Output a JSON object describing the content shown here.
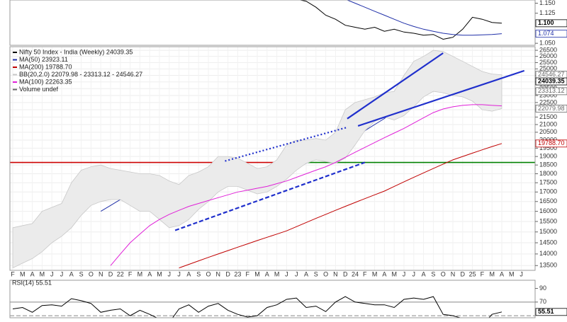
{
  "chart_data": [
    {
      "type": "line",
      "ylim": [
        1.045,
        1.158
      ],
      "yticks": [
        {
          "value": 1.05,
          "label": "1.050"
        },
        {
          "value": 1.125,
          "label": "1.125"
        },
        {
          "value": 1.15,
          "label": "1.150"
        }
      ],
      "series": [
        {
          "color": "#000000",
          "values": [
            null,
            null,
            null,
            null,
            null,
            null,
            null,
            null,
            null,
            null,
            null,
            null,
            null,
            null,
            null,
            null,
            null,
            null,
            null,
            null,
            null,
            null,
            null,
            null,
            null,
            null,
            null,
            null,
            1.165,
            1.16,
            1.155,
            1.14,
            1.12,
            1.11,
            1.095,
            1.09,
            1.085,
            1.09,
            1.08,
            1.085,
            1.078,
            1.075,
            1.07,
            1.072,
            1.06,
            1.065,
            1.085,
            1.115,
            1.11,
            1.102,
            1.1,
            null,
            null
          ]
        },
        {
          "color": "#1f2fa8",
          "values": [
            null,
            null,
            null,
            null,
            null,
            null,
            null,
            null,
            null,
            null,
            null,
            null,
            null,
            null,
            null,
            null,
            null,
            null,
            null,
            null,
            null,
            null,
            null,
            null,
            null,
            null,
            null,
            null,
            null,
            null,
            null,
            null,
            null,
            null,
            1.16,
            1.15,
            1.14,
            1.13,
            1.12,
            1.11,
            1.1,
            1.092,
            1.085,
            1.08,
            1.075,
            1.072,
            1.07,
            1.07,
            1.071,
            1.072,
            1.074,
            null,
            null
          ]
        }
      ],
      "tags": [
        {
          "value": 1.1,
          "label": "1.100",
          "color": "#000000"
        },
        {
          "value": 1.074,
          "color": "#1f2fa8"
        }
      ]
    },
    {
      "type": "line",
      "log_scale": true,
      "ylim": [
        13300,
        26800
      ],
      "categories": [
        "F",
        "M",
        "A",
        "M",
        "J",
        "J",
        "A",
        "S",
        "O",
        "N",
        "D",
        "22",
        "F",
        "M",
        "A",
        "M",
        "J",
        "J",
        "A",
        "S",
        "O",
        "N",
        "D",
        "23",
        "F",
        "M",
        "A",
        "M",
        "J",
        "J",
        "A",
        "S",
        "O",
        "N",
        "D",
        "24",
        "F",
        "M",
        "A",
        "M",
        "J",
        "J",
        "A",
        "S",
        "O",
        "N",
        "D",
        "25",
        "F",
        "M",
        "A",
        "M",
        "J"
      ],
      "yticks": [
        13500,
        14000,
        14500,
        15000,
        15500,
        16000,
        16500,
        17000,
        17500,
        18000,
        18500,
        19000,
        19500,
        20000,
        20500,
        21000,
        21500,
        22000,
        22500,
        23000,
        23500,
        24000,
        24500,
        25000,
        25500,
        26000,
        26500
      ],
      "series": [
        {
          "name": "Nifty 50 Index - India (Weekly) 24039.35",
          "color": "#000000",
          "values": [
            14500,
            14700,
            14600,
            15500,
            15700,
            15800,
            17100,
            17600,
            17700,
            17000,
            17300,
            17300,
            16800,
            17400,
            17100,
            16500,
            15700,
            17100,
            17700,
            17000,
            18000,
            18700,
            18100,
            17600,
            17300,
            17300,
            18000,
            18500,
            19200,
            19700,
            19300,
            19600,
            19100,
            20100,
            21700,
            21700,
            22000,
            22300,
            22600,
            22500,
            24000,
            24900,
            25200,
            25800,
            24200,
            24100,
            23600,
            23500,
            22100,
            23500,
            24039.35,
            null,
            null
          ]
        },
        {
          "name": "MA(50) 23923.11",
          "color": "#1f2fa8",
          "values": [
            null,
            null,
            null,
            null,
            null,
            null,
            null,
            null,
            null,
            16000,
            16300,
            16600,
            16800,
            17000,
            17050,
            17000,
            16900,
            16900,
            16950,
            17000,
            17100,
            17250,
            17350,
            17400,
            17450,
            17500,
            17600,
            17750,
            18000,
            18300,
            18600,
            18850,
            19100,
            19400,
            19800,
            20200,
            20600,
            21000,
            21400,
            21900,
            22400,
            22900,
            23300,
            23700,
            23900,
            24000,
            24050,
            24050,
            24000,
            23950,
            23923.11,
            null,
            null
          ]
        },
        {
          "name": "MA(200) 19788.70",
          "color": "#c00000",
          "values": [
            null,
            null,
            null,
            null,
            null,
            null,
            null,
            null,
            null,
            null,
            null,
            null,
            null,
            null,
            null,
            null,
            null,
            13400,
            13550,
            13700,
            13850,
            14000,
            14150,
            14300,
            14450,
            14600,
            14750,
            14900,
            15050,
            15250,
            15450,
            15650,
            15850,
            16050,
            16250,
            16450,
            16650,
            16850,
            17050,
            17300,
            17550,
            17800,
            18050,
            18300,
            18550,
            18800,
            19000,
            19200,
            19400,
            19600,
            19788.7,
            null,
            null
          ]
        },
        {
          "name": "BB(20,2.0) 22079.98 - 23313.12 - 24546.27",
          "color": "#c8c8c8",
          "upper": [
            15200,
            15300,
            15400,
            16000,
            16200,
            16400,
            17500,
            18200,
            18400,
            18500,
            18300,
            18200,
            18100,
            18000,
            18000,
            17900,
            17600,
            17400,
            17900,
            18100,
            18400,
            19000,
            19000,
            18900,
            18600,
            18300,
            18400,
            18800,
            19700,
            20000,
            20000,
            20100,
            20000,
            20500,
            22000,
            22500,
            22700,
            22900,
            23200,
            23300,
            24500,
            25600,
            26000,
            26500,
            26400,
            26000,
            25600,
            25200,
            24800,
            24600,
            24546.27,
            null,
            null
          ],
          "lower": [
            13400,
            13600,
            13800,
            14100,
            14500,
            14800,
            15200,
            15800,
            16300,
            16500,
            16600,
            16600,
            16300,
            16000,
            16000,
            15600,
            15200,
            15300,
            15600,
            16100,
            16500,
            17000,
            17300,
            17300,
            17100,
            16900,
            17000,
            17300,
            17700,
            18200,
            18600,
            18800,
            18700,
            18600,
            18900,
            19700,
            20600,
            21200,
            21500,
            21300,
            21600,
            22200,
            22900,
            23300,
            23200,
            23000,
            22900,
            22600,
            22000,
            21900,
            22079.98,
            null,
            null
          ]
        },
        {
          "name": "MA(100) 22263.35",
          "color": "#e020d8",
          "values": [
            null,
            null,
            null,
            null,
            null,
            null,
            null,
            null,
            null,
            null,
            13500,
            14000,
            14500,
            14900,
            15300,
            15600,
            15850,
            16050,
            16250,
            16400,
            16550,
            16700,
            16850,
            17000,
            17100,
            17200,
            17300,
            17450,
            17600,
            17800,
            18000,
            18200,
            18400,
            18650,
            18950,
            19250,
            19550,
            19850,
            20150,
            20450,
            20750,
            21100,
            21450,
            21800,
            22050,
            22200,
            22300,
            22350,
            22350,
            22300,
            22263.35,
            null,
            null
          ]
        }
      ],
      "extra_legend": "Volume undef",
      "hlines": [
        {
          "value": 18650,
          "color": "#cc0000",
          "x": [
            -0.3,
            28.4
          ]
        },
        {
          "value": 18650,
          "color": "#008000",
          "x": [
            28.4,
            53.5
          ]
        }
      ],
      "trendlines": [
        {
          "x": [
            34.2,
            44.0
          ],
          "values": [
            21390,
            26270
          ],
          "color": "#1f2fcc",
          "style": "solid"
        },
        {
          "x": [
            35.3,
            52.3
          ],
          "values": [
            20910,
            24860
          ],
          "color": "#1f2fcc",
          "style": "solid"
        },
        {
          "x": [
            21.7,
            34.2
          ],
          "values": [
            18730,
            20820
          ],
          "color": "#1f2fcc",
          "style": "dotted"
        },
        {
          "x": [
            16.6,
            36.0
          ],
          "values": [
            15075,
            18650
          ],
          "color": "#1f2fcc",
          "style": "dashed"
        }
      ],
      "tags": [
        {
          "value": 24546.27,
          "color": "#666666"
        },
        {
          "value": 24039.35,
          "color": "#000000"
        },
        {
          "value": 23313.12,
          "color": "#666666"
        },
        {
          "value": 22079.98,
          "color": "#666666"
        },
        {
          "value": 19788.7,
          "label": "19788.70",
          "color": "#c00000"
        }
      ]
    },
    {
      "type": "line",
      "title": "RSI(14) 55.51",
      "ylim": [
        47,
        102
      ],
      "yticks": [
        70,
        90
      ],
      "series": [
        {
          "color": "#000000",
          "values": [
            60,
            62,
            55,
            65,
            66,
            64,
            75,
            72,
            68,
            55,
            58,
            60,
            50,
            58,
            52,
            45,
            40,
            60,
            66,
            55,
            64,
            68,
            58,
            52,
            48,
            50,
            62,
            66,
            74,
            76,
            62,
            64,
            56,
            70,
            78,
            70,
            68,
            66,
            66,
            62,
            74,
            76,
            74,
            78,
            52,
            50,
            46,
            44,
            36,
            52,
            55.51,
            null,
            null
          ]
        }
      ],
      "hlines": [
        {
          "value": 70,
          "color": "#888888"
        },
        {
          "value": 50,
          "color": "#888888",
          "style": "dashed"
        }
      ],
      "tags": [
        {
          "value": 55.51,
          "color": "#000000"
        }
      ]
    }
  ]
}
